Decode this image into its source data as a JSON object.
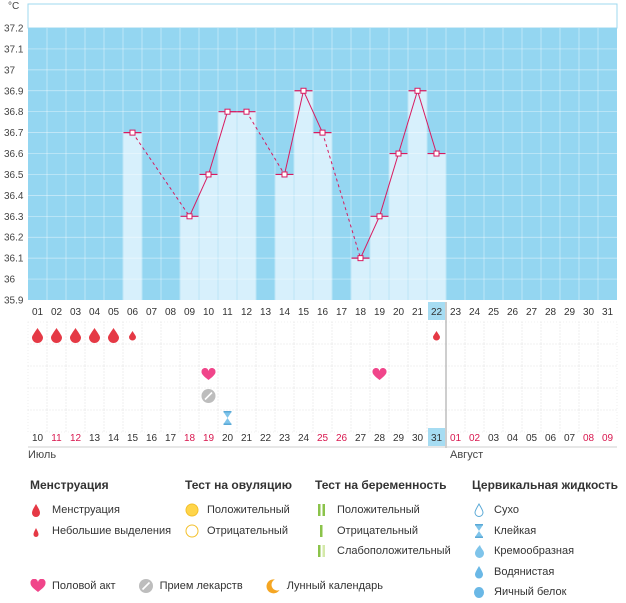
{
  "unit": "°C",
  "months": {
    "first": "Июль",
    "second": "Август"
  },
  "chart_data": {
    "type": "bar",
    "title": "",
    "ylabel": "°C",
    "ylim": [
      35.9,
      37.2
    ],
    "yticks": [
      "37.2",
      "37.1",
      "37",
      "36.9",
      "36.8",
      "36.7",
      "36.6",
      "36.5",
      "36.4",
      "36.3",
      "36.2",
      "36.1",
      "36",
      "35.9"
    ],
    "cycle_days": [
      "01",
      "02",
      "03",
      "04",
      "05",
      "06",
      "07",
      "08",
      "09",
      "10",
      "11",
      "12",
      "13",
      "14",
      "15",
      "16",
      "17",
      "18",
      "19",
      "20",
      "21",
      "22",
      "23",
      "24",
      "25",
      "26",
      "27",
      "28",
      "29",
      "30",
      "31"
    ],
    "dates": [
      "10",
      "11",
      "12",
      "13",
      "14",
      "15",
      "16",
      "17",
      "18",
      "19",
      "20",
      "21",
      "22",
      "23",
      "24",
      "25",
      "26",
      "27",
      "28",
      "29",
      "30",
      "31",
      "01",
      "02",
      "03",
      "04",
      "05",
      "06",
      "07",
      "08",
      "09"
    ],
    "weekend_dates": [
      "11",
      "12",
      "18",
      "19",
      "25",
      "26",
      "01",
      "02",
      "08",
      "09"
    ],
    "current_index": 21,
    "temperatures": [
      null,
      null,
      null,
      null,
      null,
      36.7,
      null,
      null,
      36.3,
      36.5,
      36.8,
      36.8,
      null,
      36.5,
      36.9,
      36.7,
      null,
      36.1,
      36.3,
      36.6,
      36.9,
      36.6,
      null,
      null,
      null,
      null,
      null,
      null,
      null,
      null,
      null
    ],
    "menstruation": [
      "full",
      "full",
      "full",
      "full",
      "full",
      "light",
      null,
      null,
      null,
      null,
      null,
      null,
      null,
      null,
      null,
      null,
      null,
      null,
      null,
      null,
      null,
      "light",
      null,
      null,
      null,
      null,
      null,
      null,
      null,
      null,
      null
    ],
    "intercourse_days": [
      9,
      18
    ],
    "medication_days": [
      9
    ],
    "cervical_fluid": [
      {
        "day": 10,
        "type": "sticky"
      }
    ]
  },
  "legend": {
    "menstruation": {
      "title": "Менструация",
      "items": [
        "Менструация",
        "Небольшие выделения"
      ]
    },
    "ovulation": {
      "title": "Тест на овуляцию",
      "items": [
        "Положительный",
        "Отрицательный"
      ]
    },
    "pregnancy": {
      "title": "Тест на беременность",
      "items": [
        "Положительный",
        "Отрицательный",
        "Слабоположительный"
      ]
    },
    "cervical": {
      "title": "Цервикальная жидкость",
      "items": [
        "Сухо",
        "Клейкая",
        "Кремообразная",
        "Водянистая",
        "Яичный белок"
      ]
    },
    "bottom": [
      "Половой акт",
      "Прием лекарств",
      "Лунный календарь"
    ]
  },
  "colors": {
    "sky": "#94d6f1",
    "bar": "#d7f0fc",
    "line": "#d81b60",
    "drop": "#e53945",
    "heart": "#f0458a",
    "today": "#a6dcf2",
    "weekend": "#d8174e"
  }
}
